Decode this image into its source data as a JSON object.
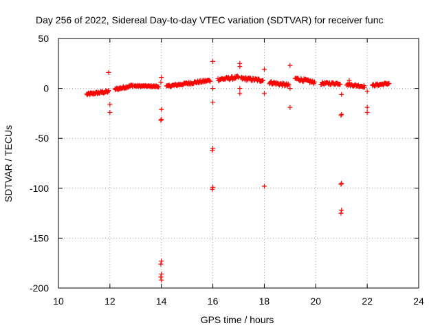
{
  "chart_data": {
    "type": "scatter",
    "title": "Day 256 of 2022, Sidereal Day-to-day VTEC variation (SDTVAR) for receiver func",
    "xlabel": "GPS time / hours",
    "ylabel": "SDTVAR / TECUs",
    "xlim": [
      10,
      24
    ],
    "ylim": [
      -200,
      50
    ],
    "xticks": [
      10,
      12,
      14,
      16,
      18,
      20,
      22,
      24
    ],
    "yticks": [
      50,
      0,
      -50,
      -100,
      -150,
      -200
    ],
    "grid": true,
    "marker": "plus",
    "color": "#ff0000",
    "segments": [
      {
        "x0": 11.1,
        "x1": 11.95,
        "y0": -6,
        "y1": -3,
        "n": 42,
        "spread": 2.5
      },
      {
        "x0": 12.2,
        "x1": 12.9,
        "y0": -1,
        "y1": 3,
        "n": 34,
        "spread": 2.5
      },
      {
        "x0": 12.95,
        "x1": 13.9,
        "y0": 2.5,
        "y1": 2,
        "n": 40,
        "spread": 1.5
      },
      {
        "x0": 14.2,
        "x1": 15.0,
        "y0": 2,
        "y1": 5,
        "n": 36,
        "spread": 2.0
      },
      {
        "x0": 15.0,
        "x1": 15.9,
        "y0": 5,
        "y1": 8,
        "n": 40,
        "spread": 2.5
      },
      {
        "x0": 16.2,
        "x1": 17.0,
        "y0": 9,
        "y1": 11,
        "n": 36,
        "spread": 3.0
      },
      {
        "x0": 17.1,
        "x1": 17.95,
        "y0": 10,
        "y1": 8,
        "n": 40,
        "spread": 3.0
      },
      {
        "x0": 18.2,
        "x1": 18.95,
        "y0": 6,
        "y1": 3,
        "n": 34,
        "spread": 3.0
      },
      {
        "x0": 19.2,
        "x1": 19.95,
        "y0": 10,
        "y1": 6,
        "n": 34,
        "spread": 3.0
      },
      {
        "x0": 20.2,
        "x1": 20.95,
        "y0": 5,
        "y1": 5,
        "n": 32,
        "spread": 2.5
      },
      {
        "x0": 21.2,
        "x1": 21.9,
        "y0": 4,
        "y1": 2,
        "n": 30,
        "spread": 2.0
      },
      {
        "x0": 22.2,
        "x1": 22.85,
        "y0": 3,
        "y1": 5,
        "n": 30,
        "spread": 2.0
      }
    ],
    "outliers": [
      {
        "x": 11.95,
        "y": 16
      },
      {
        "x": 12.0,
        "y": -16
      },
      {
        "x": 12.0,
        "y": -24
      },
      {
        "x": 14.0,
        "y": 11
      },
      {
        "x": 13.98,
        "y": 6
      },
      {
        "x": 14.0,
        "y": -21
      },
      {
        "x": 14.0,
        "y": -31
      },
      {
        "x": 13.98,
        "y": -32
      },
      {
        "x": 14.0,
        "y": -173
      },
      {
        "x": 13.98,
        "y": -176
      },
      {
        "x": 14.0,
        "y": -186
      },
      {
        "x": 13.98,
        "y": -189
      },
      {
        "x": 14.0,
        "y": -192
      },
      {
        "x": 16.0,
        "y": 27
      },
      {
        "x": 16.0,
        "y": 0
      },
      {
        "x": 16.0,
        "y": -14
      },
      {
        "x": 16.0,
        "y": -60
      },
      {
        "x": 15.98,
        "y": -62
      },
      {
        "x": 16.0,
        "y": -99
      },
      {
        "x": 15.98,
        "y": -101
      },
      {
        "x": 17.05,
        "y": 25
      },
      {
        "x": 17.05,
        "y": 22
      },
      {
        "x": 17.05,
        "y": 0
      },
      {
        "x": 17.05,
        "y": -5
      },
      {
        "x": 18.0,
        "y": 19
      },
      {
        "x": 18.0,
        "y": -5
      },
      {
        "x": 18.0,
        "y": -98
      },
      {
        "x": 19.0,
        "y": 23
      },
      {
        "x": 19.0,
        "y": -19
      },
      {
        "x": 19.0,
        "y": 0
      },
      {
        "x": 21.0,
        "y": -6
      },
      {
        "x": 21.0,
        "y": -26
      },
      {
        "x": 20.98,
        "y": -27
      },
      {
        "x": 21.0,
        "y": -95
      },
      {
        "x": 20.98,
        "y": -96
      },
      {
        "x": 21.0,
        "y": -122
      },
      {
        "x": 20.98,
        "y": -125
      },
      {
        "x": 21.3,
        "y": 8
      },
      {
        "x": 21.3,
        "y": 5
      },
      {
        "x": 22.0,
        "y": -3
      },
      {
        "x": 22.0,
        "y": -19
      },
      {
        "x": 22.0,
        "y": -24
      }
    ]
  }
}
